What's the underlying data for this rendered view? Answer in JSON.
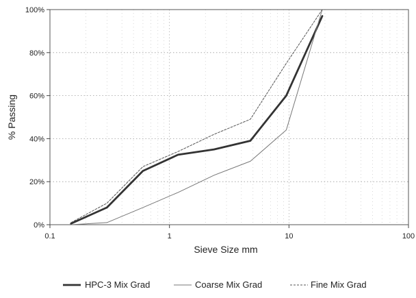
{
  "chart_data": {
    "type": "line",
    "title": "",
    "xlabel": "Sieve Size mm",
    "ylabel": "% Passing",
    "x_scale": "log",
    "xlim": [
      0.1,
      100
    ],
    "ylim": [
      0,
      100
    ],
    "x_ticks": [
      {
        "value": 0.1,
        "label": "0.1"
      },
      {
        "value": 1,
        "label": "1"
      },
      {
        "value": 10,
        "label": "10"
      },
      {
        "value": 100,
        "label": "100"
      }
    ],
    "y_ticks": [
      {
        "value": 0,
        "label": "0%"
      },
      {
        "value": 20,
        "label": "20%"
      },
      {
        "value": 40,
        "label": "40%"
      },
      {
        "value": 60,
        "label": "60%"
      },
      {
        "value": 80,
        "label": "80%"
      },
      {
        "value": 100,
        "label": "100%"
      }
    ],
    "grid": true,
    "legend_position": "bottom",
    "series": [
      {
        "name": "HPC-3 Mix Grad",
        "style": "solid-thick",
        "color": "#333333",
        "x": [
          0.15,
          0.3,
          0.6,
          1.18,
          2.36,
          4.75,
          9.5,
          19
        ],
        "y": [
          0.5,
          8,
          25,
          32.5,
          35,
          39,
          60,
          97
        ]
      },
      {
        "name": "Coarse Mix Grad",
        "style": "solid-thin",
        "color": "#777777",
        "x": [
          0.15,
          0.3,
          0.6,
          1.18,
          2.36,
          4.75,
          9.5,
          19
        ],
        "y": [
          0,
          1,
          8,
          15,
          23,
          29.5,
          44,
          100
        ]
      },
      {
        "name": "Fine Mix Grad",
        "style": "dashed",
        "color": "#555555",
        "x": [
          0.15,
          0.3,
          0.6,
          1.18,
          2.36,
          4.75,
          9.5,
          19
        ],
        "y": [
          1,
          10,
          27,
          34,
          42,
          49,
          75,
          100
        ]
      }
    ]
  }
}
